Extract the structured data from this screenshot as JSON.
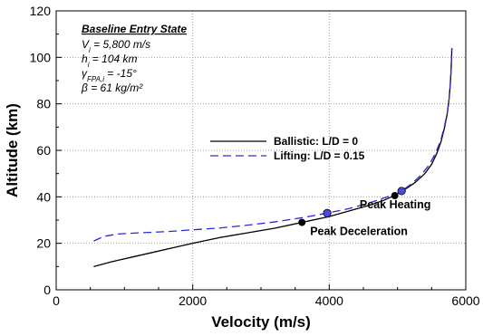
{
  "chart_data": {
    "type": "line",
    "xlabel": "Velocity (m/s)",
    "ylabel": "Altitude (km)",
    "xlim": [
      0,
      6000
    ],
    "ylim": [
      0,
      120
    ],
    "x_ticks": [
      "0",
      "2000",
      "4000",
      "6000"
    ],
    "y_ticks": [
      "0",
      "20",
      "40",
      "60",
      "80",
      "100",
      "120"
    ],
    "grid": "dotted",
    "colors": {
      "ballistic": "#000000",
      "lifting": "#2a2ad4",
      "marker_ballistic": "#000000",
      "marker_lifting": "#4b4bd8"
    },
    "annotation": {
      "title": "Baseline Entry State",
      "lines": [
        {
          "main": "V",
          "sub": "i",
          "rest": " = 5,800 m/s"
        },
        {
          "main": "h",
          "sub": "i",
          "rest": " = 104 km"
        },
        {
          "main": "γ",
          "sub": "FPA,i",
          "rest": " = -15°"
        },
        {
          "main": "β",
          "sub": "",
          "rest": " = 61 kg/m²"
        }
      ]
    },
    "legend_position": "center-right",
    "series": [
      {
        "name": "Ballistic:  L/D = 0",
        "style": "solid",
        "points": [
          [
            550,
            10
          ],
          [
            800,
            12
          ],
          [
            1100,
            14
          ],
          [
            1400,
            16
          ],
          [
            1700,
            18
          ],
          [
            2000,
            20
          ],
          [
            2400,
            22.5
          ],
          [
            2800,
            24.5
          ],
          [
            3200,
            26.5
          ],
          [
            3600,
            29
          ],
          [
            4000,
            31.5
          ],
          [
            4300,
            34
          ],
          [
            4600,
            36.5
          ],
          [
            4800,
            38.5
          ],
          [
            4950,
            40.5
          ],
          [
            5100,
            43
          ],
          [
            5250,
            46
          ],
          [
            5400,
            50
          ],
          [
            5500,
            54
          ],
          [
            5580,
            59
          ],
          [
            5640,
            64
          ],
          [
            5690,
            70
          ],
          [
            5730,
            76
          ],
          [
            5755,
            82
          ],
          [
            5772,
            88
          ],
          [
            5784,
            94
          ],
          [
            5792,
            100
          ],
          [
            5796,
            104
          ]
        ]
      },
      {
        "name": "Lifting:  L/D = 0.15",
        "style": "dashed",
        "points": [
          [
            550,
            21
          ],
          [
            700,
            23
          ],
          [
            900,
            24
          ],
          [
            1200,
            24.5
          ],
          [
            1600,
            25
          ],
          [
            2000,
            25.8
          ],
          [
            2400,
            26.6
          ],
          [
            2800,
            27.8
          ],
          [
            3200,
            29.2
          ],
          [
            3600,
            31
          ],
          [
            3970,
            33
          ],
          [
            4300,
            35
          ],
          [
            4600,
            37.5
          ],
          [
            4850,
            40
          ],
          [
            5000,
            41.5
          ],
          [
            5060,
            42.5
          ],
          [
            5200,
            45.5
          ],
          [
            5350,
            49.5
          ],
          [
            5470,
            54
          ],
          [
            5560,
            59
          ],
          [
            5630,
            64
          ],
          [
            5685,
            70
          ],
          [
            5728,
            76
          ],
          [
            5755,
            82
          ],
          [
            5772,
            88
          ],
          [
            5784,
            94
          ],
          [
            5792,
            100
          ],
          [
            5796,
            104
          ]
        ]
      }
    ],
    "markers": [
      {
        "series": "Ballistic:  L/D = 0",
        "x": 3600,
        "y": 29,
        "label": "Peak Deceleration"
      },
      {
        "series": "Lifting:  L/D = 0.15",
        "x": 3970,
        "y": 33,
        "label": ""
      },
      {
        "series": "Ballistic:  L/D = 0",
        "x": 4960,
        "y": 40.5,
        "label": ""
      },
      {
        "series": "Lifting:  L/D = 0.15",
        "x": 5060,
        "y": 42.5,
        "label": "Peak Heating"
      }
    ]
  }
}
